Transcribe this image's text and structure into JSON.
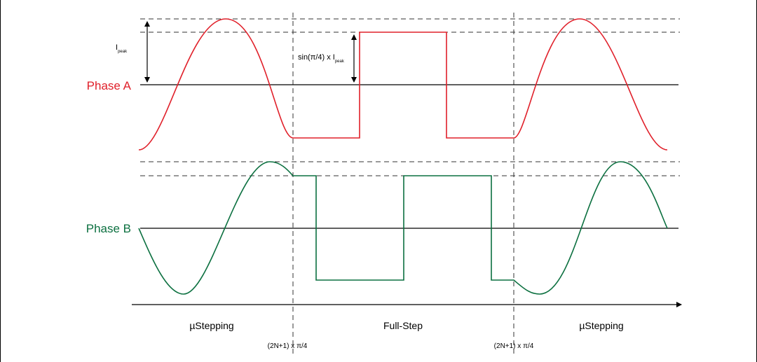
{
  "phase_a": {
    "label": "Phase A",
    "color": "#e0202a"
  },
  "phase_b": {
    "label": "Phase B",
    "color": "#0c7040"
  },
  "ipeak": {
    "main": "I",
    "sub": "peak"
  },
  "sin_label": {
    "main": "sin(π/4) x I",
    "sub": "peak"
  },
  "regions": {
    "left": "µStepping",
    "middle": "Full-Step",
    "right": "µStepping"
  },
  "transitions": {
    "left": "(2N+1) x π/4",
    "right": "(2N+1) x π/4"
  }
}
